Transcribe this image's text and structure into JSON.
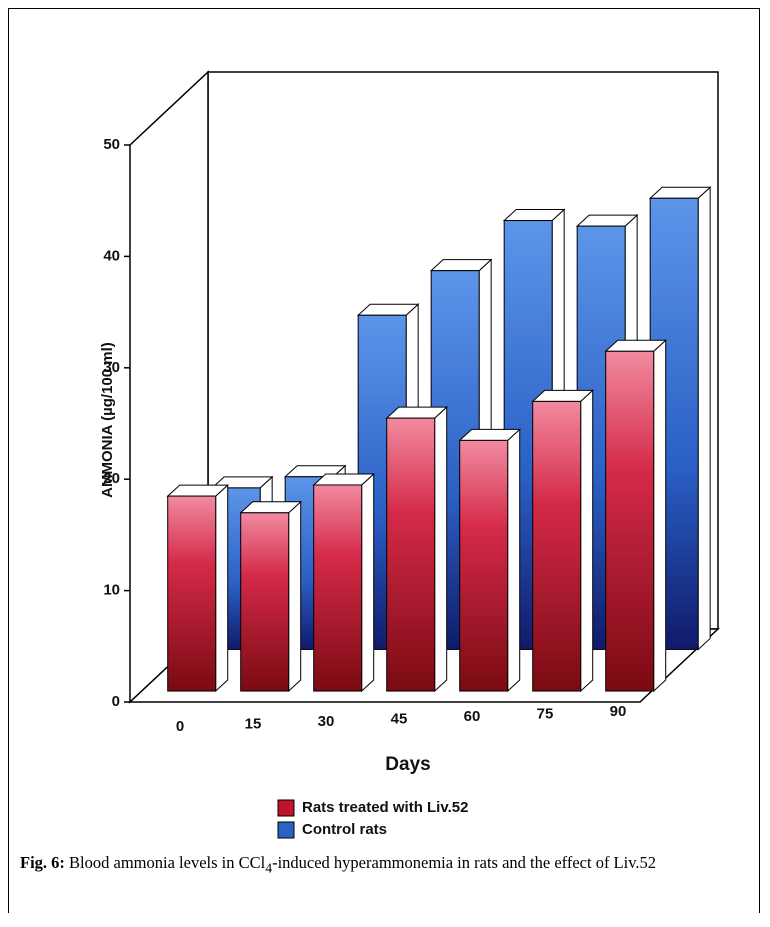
{
  "chart_data": {
    "type": "bar3d",
    "y_label": "AMMONIA (µg/100 ml)",
    "x_label": "Days",
    "categories": [
      "0",
      "15",
      "30",
      "45",
      "60",
      "75",
      "90"
    ],
    "series": [
      {
        "name": "Rats treated with Liv.52",
        "color": "#c0142c",
        "values": [
          17.5,
          16,
          18.5,
          24.5,
          22.5,
          26,
          30.5
        ]
      },
      {
        "name": "Control rats",
        "color": "#2a62c8",
        "values": [
          14.5,
          15.5,
          30,
          34,
          38.5,
          38,
          40.5
        ]
      }
    ],
    "ylim": [
      0,
      50
    ],
    "yticks": [
      0,
      10,
      20,
      30,
      40,
      50
    ]
  },
  "caption": {
    "label": "Fig. 6:",
    "text": " Blood ammonia levels in CCl",
    "sub": "4",
    "rest": "-induced hyperammonemia in rats and the effect of Liv.52"
  }
}
